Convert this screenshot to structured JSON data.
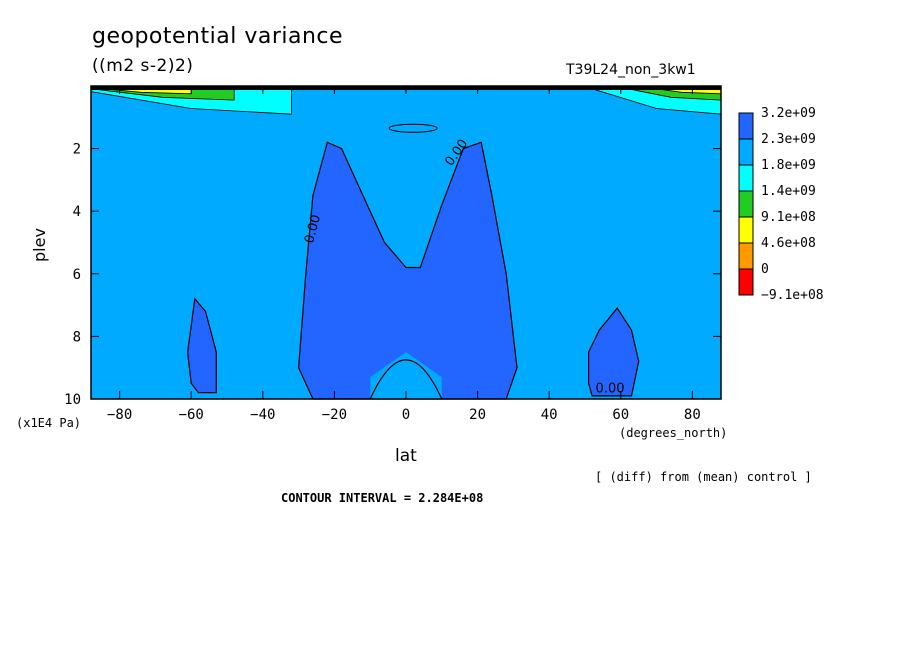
{
  "chart_data": {
    "type": "heatmap",
    "title": "geopotential variance",
    "units": "((m2 s-2)2)",
    "run_label": "T39L24_non_3kw1",
    "xlabel": "lat",
    "x_unit": "(degrees_north)",
    "ylabel": "plev",
    "y_unit": "(x1E4 Pa)",
    "xlim": [
      -88,
      88
    ],
    "ylim": [
      10,
      0
    ],
    "x_ticks": [
      -80,
      -60,
      -40,
      -20,
      0,
      20,
      40,
      60,
      80
    ],
    "y_ticks": [
      2,
      4,
      6,
      8,
      10
    ],
    "colorbar": {
      "levels": [
        "3.2e+09",
        "2.3e+09",
        "1.8e+09",
        "1.4e+09",
        "9.1e+08",
        "4.6e+08",
        "0",
        "−9.1e+08"
      ],
      "colors": [
        "#ff0000",
        "#ff9900",
        "#ffff00",
        "#22cc22",
        "#00ffff",
        "#00aaff",
        "#2266ff"
      ]
    },
    "contour_labels": [
      "0.00",
      "0.00",
      "0.00"
    ],
    "note": "[ (diff) from (mean) control ]",
    "contour_interval": "CONTOUR INTERVAL = 2.284E+08",
    "regions": {
      "negative_center": [
        [
          -26,
          10
        ],
        [
          -30,
          9
        ],
        [
          -28,
          6
        ],
        [
          -26,
          3.5
        ],
        [
          -22,
          1.8
        ],
        [
          -18,
          2
        ],
        [
          -12,
          3.5
        ],
        [
          -6,
          5
        ],
        [
          0,
          5.8
        ],
        [
          4,
          5.8
        ],
        [
          10,
          3.8
        ],
        [
          16,
          2
        ],
        [
          21,
          1.8
        ],
        [
          24,
          3.5
        ],
        [
          28,
          6
        ],
        [
          31,
          9
        ],
        [
          28,
          10
        ]
      ],
      "negative_center_bottom_bulge": [
        [
          -10,
          9.3
        ],
        [
          0,
          8.5
        ],
        [
          10,
          9.3
        ]
      ],
      "negative_left_lobe": [
        [
          -60,
          9.5
        ],
        [
          -61,
          8.5
        ],
        [
          -59,
          6.8
        ],
        [
          -56,
          7.2
        ],
        [
          -53,
          8.5
        ],
        [
          -53,
          9.8
        ],
        [
          -58,
          9.8
        ]
      ],
      "negative_right_lobe": [
        [
          51,
          9.5
        ],
        [
          51,
          8.5
        ],
        [
          54,
          7.8
        ],
        [
          59,
          7.1
        ],
        [
          63,
          7.8
        ],
        [
          65,
          8.8
        ],
        [
          63,
          9.9
        ],
        [
          52,
          9.9
        ]
      ]
    }
  }
}
